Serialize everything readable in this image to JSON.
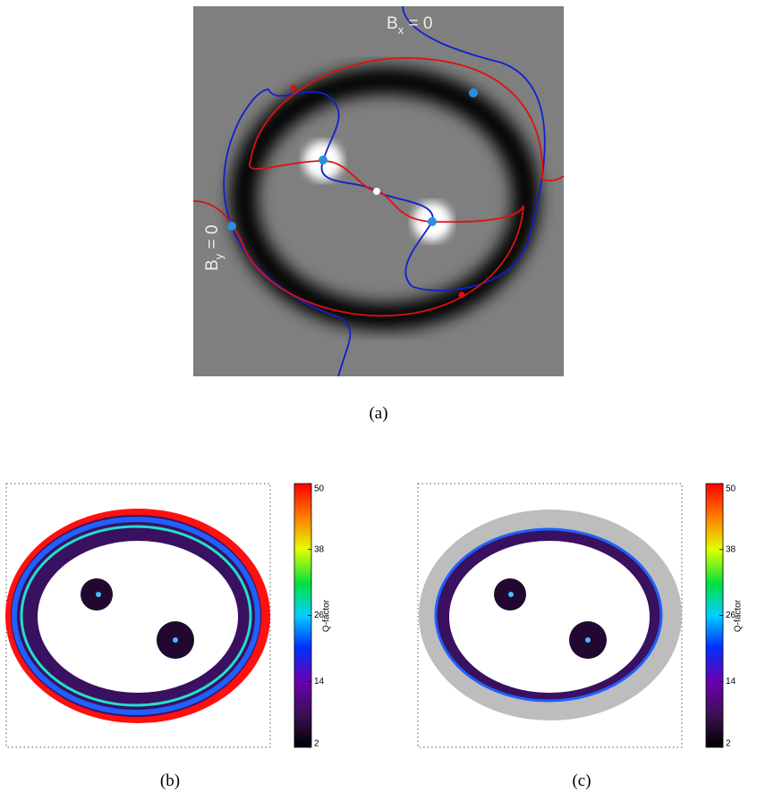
{
  "panels": [
    {
      "caption": "(a)",
      "annotations": [
        {
          "base": "B",
          "sub": "x",
          "rest": " = 0"
        },
        {
          "base": "B",
          "sub": "y",
          "rest": " = 0"
        }
      ]
    },
    {
      "caption": "(b)",
      "colorbar": {
        "label": "Q-factor",
        "lim": [
          2,
          50
        ],
        "ticks": [
          2,
          14,
          26,
          38,
          50
        ]
      }
    },
    {
      "caption": "(c)",
      "colorbar": {
        "label": "Q-factor",
        "lim": [
          2,
          50
        ],
        "ticks": [
          2,
          14,
          26,
          38,
          50
        ]
      }
    }
  ]
}
